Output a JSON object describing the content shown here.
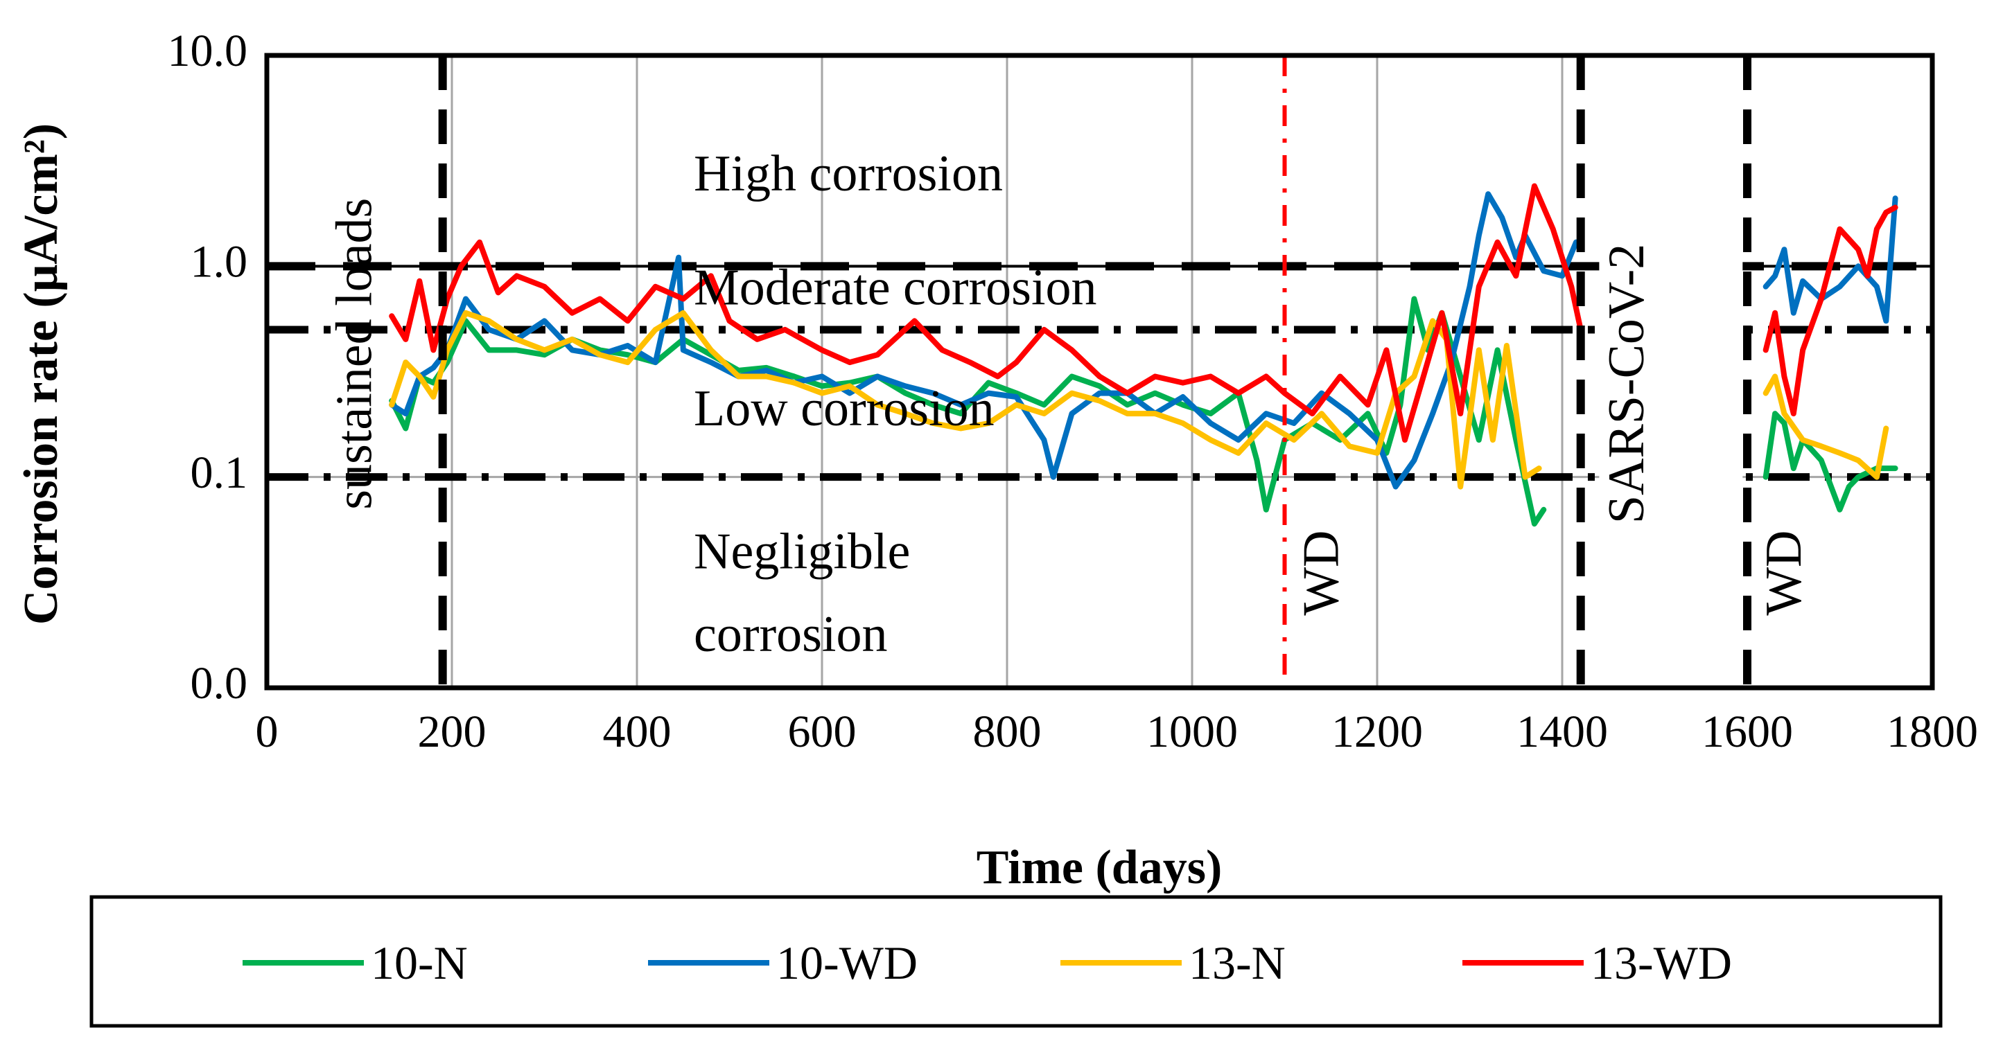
{
  "chart_data": {
    "type": "line",
    "ylabel": "Corrosion rate (μA/cm²)",
    "xlabel": "Time (days)",
    "y_scale": "log",
    "ylim": [
      0.01,
      10
    ],
    "xlim": [
      0,
      1800
    ],
    "x_ticks": [
      0,
      200,
      400,
      600,
      800,
      1000,
      1200,
      1400,
      1600,
      1800
    ],
    "y_ticks": [
      {
        "value": 0.01,
        "label": "0.0"
      },
      {
        "value": 0.1,
        "label": "0.1"
      },
      {
        "value": 1,
        "label": "1.0"
      },
      {
        "value": 10,
        "label": "10.0"
      }
    ],
    "x_tick_labels": [
      "0",
      "200",
      "400",
      "600",
      "800",
      "1000",
      "1200",
      "1400",
      "1600",
      "1800"
    ],
    "vertical_gridlines": [
      200,
      400,
      600,
      800,
      1000,
      1200,
      1400
    ],
    "thresholds": [
      {
        "value": 1.0,
        "style": "solid-dashed"
      },
      {
        "value": 0.5,
        "style": "dash-dot"
      },
      {
        "value": 0.1,
        "style": "dash-dot"
      }
    ],
    "zones": [
      {
        "label": "High corrosion",
        "x": 740,
        "y": 2.6
      },
      {
        "label": "Moderate corrosion",
        "x": 740,
        "y": 0.75
      },
      {
        "label": "Low corrosion",
        "x": 740,
        "y": 0.2
      },
      {
        "label": "Negligible",
        "x": 740,
        "y": 0.042
      },
      {
        "label": "corrosion",
        "x": 740,
        "y": 0.017
      }
    ],
    "phase_markers": [
      {
        "x": 190,
        "style": "dashed-black"
      },
      {
        "x": 1100,
        "style": "dash-dot-red"
      },
      {
        "x": 1420,
        "style": "dashed-black"
      },
      {
        "x": 1600,
        "style": "dashed-black"
      }
    ],
    "phase_labels": [
      {
        "label": "sustained loads",
        "x": 100,
        "y": 0.07
      },
      {
        "label": "WD",
        "x": 1145,
        "y": 0.022
      },
      {
        "label": "SARS-CoV-2",
        "x": 1475,
        "y": 0.06
      },
      {
        "label": "WD",
        "x": 1645,
        "y": 0.022
      }
    ],
    "series": [
      {
        "name": "10-N",
        "color": "#00b050",
        "segments": [
          {
            "x": [
              135,
              150,
              165,
              180,
              195,
              215,
              240,
              270,
              300,
              330,
              360,
              390,
              420,
              450,
              480,
              510,
              540,
              570,
              600,
              630,
              660,
              690,
              720,
              750,
              780,
              810,
              840,
              870,
              900,
              930,
              960,
              990,
              1020,
              1050,
              1070,
              1080,
              1100,
              1130,
              1160,
              1190,
              1210,
              1225,
              1240,
              1255,
              1270,
              1290,
              1310,
              1330,
              1350,
              1370,
              1380
            ],
            "y": [
              0.23,
              0.17,
              0.3,
              0.28,
              0.35,
              0.55,
              0.4,
              0.4,
              0.38,
              0.45,
              0.4,
              0.38,
              0.35,
              0.45,
              0.38,
              0.32,
              0.33,
              0.3,
              0.27,
              0.28,
              0.3,
              0.25,
              0.22,
              0.2,
              0.28,
              0.25,
              0.22,
              0.3,
              0.27,
              0.22,
              0.25,
              0.22,
              0.2,
              0.25,
              0.12,
              0.07,
              0.15,
              0.18,
              0.15,
              0.2,
              0.13,
              0.22,
              0.7,
              0.4,
              0.6,
              0.3,
              0.15,
              0.4,
              0.15,
              0.06,
              0.07
            ]
          },
          {
            "x": [
              1620,
              1630,
              1640,
              1650,
              1660,
              1680,
              1700,
              1710,
              1720,
              1740,
              1760
            ],
            "y": [
              0.1,
              0.2,
              0.18,
              0.11,
              0.15,
              0.12,
              0.07,
              0.09,
              0.1,
              0.11,
              0.11
            ]
          }
        ]
      },
      {
        "name": "10-WD",
        "color": "#0070c0",
        "segments": [
          {
            "x": [
              135,
              150,
              165,
              180,
              195,
              215,
              240,
              270,
              300,
              330,
              360,
              390,
              420,
              445,
              450,
              480,
              510,
              540,
              570,
              600,
              630,
              660,
              690,
              720,
              750,
              780,
              810,
              840,
              850,
              870,
              900,
              930,
              960,
              990,
              1020,
              1050,
              1080,
              1110,
              1140,
              1170,
              1200,
              1220,
              1240,
              1260,
              1280,
              1300,
              1310,
              1320,
              1335,
              1350,
              1360,
              1380,
              1400,
              1415
            ],
            "y": [
              0.22,
              0.2,
              0.3,
              0.33,
              0.4,
              0.7,
              0.5,
              0.45,
              0.55,
              0.4,
              0.38,
              0.42,
              0.35,
              1.1,
              0.4,
              0.35,
              0.3,
              0.32,
              0.28,
              0.3,
              0.25,
              0.3,
              0.27,
              0.25,
              0.22,
              0.25,
              0.24,
              0.15,
              0.1,
              0.2,
              0.25,
              0.25,
              0.2,
              0.24,
              0.18,
              0.15,
              0.2,
              0.18,
              0.25,
              0.2,
              0.15,
              0.09,
              0.12,
              0.2,
              0.35,
              0.8,
              1.4,
              2.2,
              1.7,
              1.1,
              1.4,
              0.95,
              0.9,
              1.3
            ]
          },
          {
            "x": [
              1620,
              1630,
              1640,
              1650,
              1660,
              1680,
              1700,
              1720,
              1740,
              1750,
              1760
            ],
            "y": [
              0.8,
              0.9,
              1.2,
              0.6,
              0.85,
              0.7,
              0.8,
              1.0,
              0.8,
              0.55,
              2.1
            ]
          }
        ]
      },
      {
        "name": "13-N",
        "color": "#ffc000",
        "segments": [
          {
            "x": [
              135,
              150,
              165,
              180,
              195,
              215,
              240,
              270,
              300,
              330,
              360,
              390,
              420,
              450,
              480,
              510,
              540,
              570,
              600,
              630,
              660,
              690,
              720,
              750,
              780,
              810,
              840,
              870,
              900,
              930,
              960,
              990,
              1020,
              1050,
              1080,
              1110,
              1140,
              1170,
              1200,
              1220,
              1240,
              1260,
              1275,
              1290,
              1310,
              1325,
              1340,
              1360,
              1375
            ],
            "y": [
              0.22,
              0.35,
              0.3,
              0.24,
              0.4,
              0.6,
              0.55,
              0.45,
              0.4,
              0.45,
              0.38,
              0.35,
              0.5,
              0.6,
              0.4,
              0.3,
              0.3,
              0.28,
              0.25,
              0.27,
              0.22,
              0.2,
              0.18,
              0.17,
              0.18,
              0.22,
              0.2,
              0.25,
              0.23,
              0.2,
              0.2,
              0.18,
              0.15,
              0.13,
              0.18,
              0.15,
              0.2,
              0.14,
              0.13,
              0.25,
              0.3,
              0.55,
              0.45,
              0.09,
              0.4,
              0.15,
              0.42,
              0.1,
              0.11
            ]
          },
          {
            "x": [
              1620,
              1630,
              1640,
              1660,
              1680,
              1700,
              1720,
              1740,
              1750
            ],
            "y": [
              0.25,
              0.3,
              0.2,
              0.15,
              0.14,
              0.13,
              0.12,
              0.1,
              0.17
            ]
          }
        ]
      },
      {
        "name": "13-WD",
        "color": "#ff0000",
        "segments": [
          {
            "x": [
              135,
              150,
              165,
              180,
              195,
              210,
              230,
              250,
              270,
              300,
              330,
              360,
              390,
              420,
              450,
              480,
              500,
              530,
              560,
              600,
              630,
              660,
              700,
              730,
              760,
              790,
              810,
              840,
              870,
              900,
              930,
              960,
              990,
              1020,
              1050,
              1080,
              1100,
              1130,
              1160,
              1190,
              1210,
              1230,
              1250,
              1270,
              1290,
              1310,
              1330,
              1350,
              1370,
              1390,
              1410,
              1420
            ],
            "y": [
              0.58,
              0.45,
              0.85,
              0.4,
              0.7,
              1.0,
              1.3,
              0.75,
              0.9,
              0.8,
              0.6,
              0.7,
              0.55,
              0.8,
              0.7,
              0.9,
              0.55,
              0.45,
              0.5,
              0.4,
              0.35,
              0.38,
              0.55,
              0.4,
              0.35,
              0.3,
              0.35,
              0.5,
              0.4,
              0.3,
              0.25,
              0.3,
              0.28,
              0.3,
              0.25,
              0.3,
              0.25,
              0.2,
              0.3,
              0.22,
              0.4,
              0.15,
              0.3,
              0.6,
              0.2,
              0.8,
              1.3,
              0.9,
              2.4,
              1.5,
              0.8,
              0.5
            ]
          },
          {
            "x": [
              1620,
              1630,
              1640,
              1650,
              1660,
              1680,
              1700,
              1720,
              1730,
              1740,
              1750,
              1760
            ],
            "y": [
              0.4,
              0.6,
              0.3,
              0.2,
              0.4,
              0.7,
              1.5,
              1.2,
              0.9,
              1.5,
              1.8,
              1.9
            ]
          }
        ]
      }
    ]
  }
}
